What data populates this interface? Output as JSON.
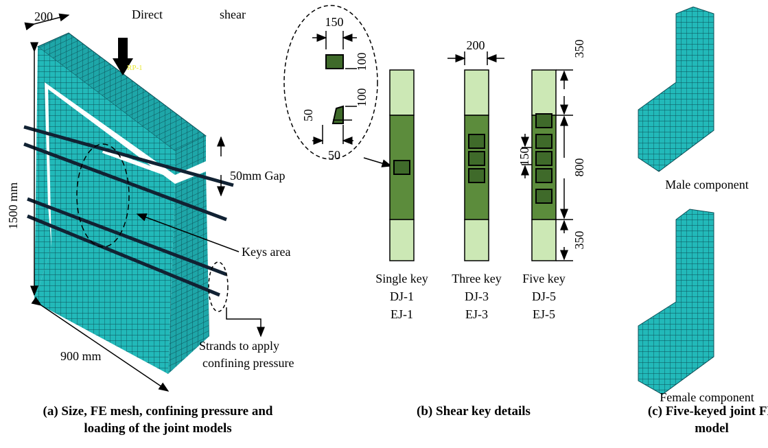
{
  "panel_a": {
    "width_label": "200",
    "load_label_1": "Direct",
    "load_label_2": "shear",
    "reference_point": "RP-1",
    "gap_label": "50mm Gap",
    "height_label": "1500 mm",
    "keys_label": "Keys area",
    "length_label": "900 mm",
    "strands_label_1": "Strands to apply",
    "strands_label_2": "confining pressure",
    "caption_1": "(a) Size, FE mesh, confining pressure and",
    "caption_2": "loading of the joint models"
  },
  "panel_b": {
    "detail": {
      "key_width": "150",
      "key_height": "100",
      "key_spacing": "100",
      "trap_height": "50",
      "trap_width": "50"
    },
    "column_width": "200",
    "end_top": "350",
    "middle": "800",
    "end_bottom": "350",
    "key_pitch": "150",
    "specimens": [
      {
        "name": "Single key",
        "labels": [
          "DJ-1",
          "EJ-1"
        ]
      },
      {
        "name": "Three key",
        "labels": [
          "DJ-3",
          "EJ-3"
        ]
      },
      {
        "name": "Five key",
        "labels": [
          "DJ-5",
          "EJ-5"
        ]
      }
    ],
    "caption": "(b) Shear key details"
  },
  "panel_c": {
    "male_label": "Male component",
    "female_label": "Female component",
    "caption_1": "(c) Five-keyed joint FE",
    "caption_2": "model"
  }
}
